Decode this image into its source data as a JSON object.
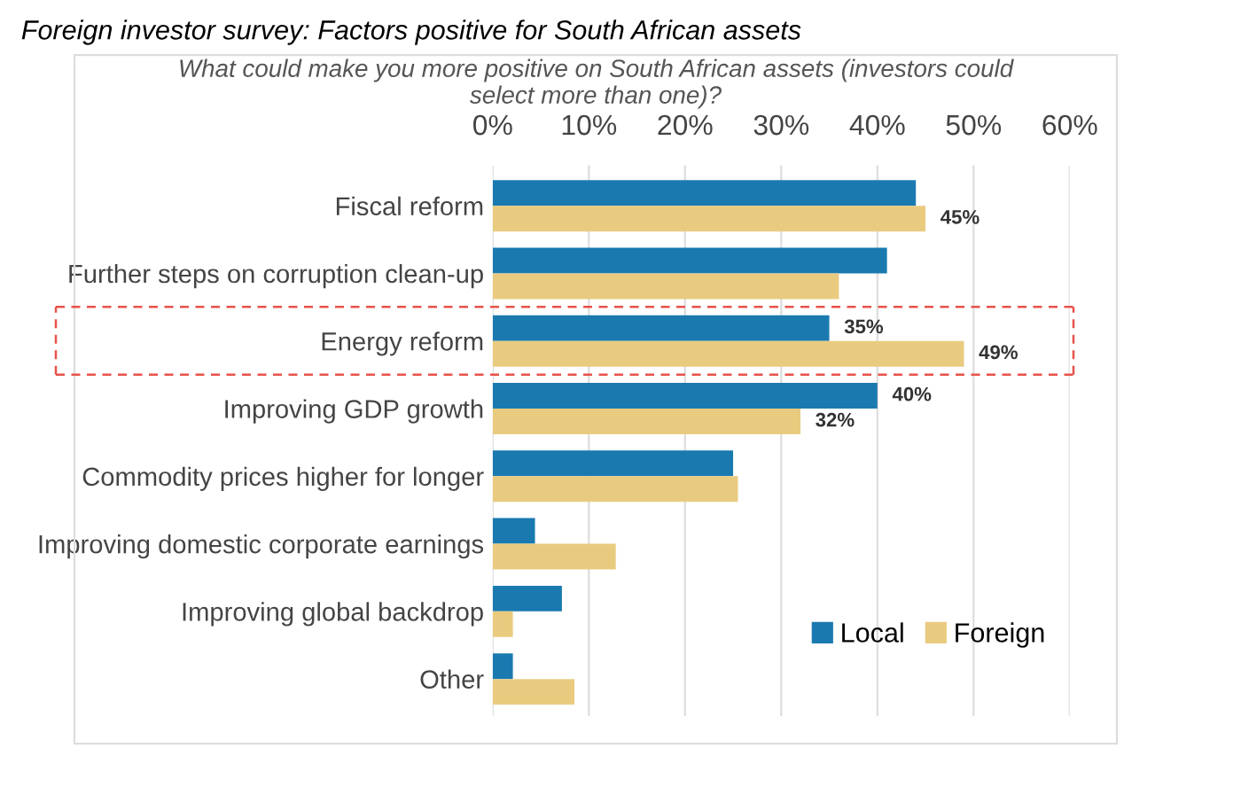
{
  "chart_data": {
    "type": "bar",
    "orientation": "horizontal",
    "title": "Foreign investor survey: Factors positive for South African assets",
    "subtitle": "What could make you more positive on South African assets (investors could\nselect more than one)?",
    "categories": [
      "Fiscal reform",
      "Further steps on corruption clean-up",
      "Energy reform",
      "Improving GDP growth",
      "Commodity prices higher for longer",
      "Improving domestic corporate earnings",
      "Improving global backdrop",
      "Other"
    ],
    "series": [
      {
        "name": "Local",
        "color": "#1a7ab0",
        "values": [
          44,
          41,
          35,
          40,
          25,
          4.4,
          7.2,
          2.1
        ],
        "value_labels": [
          null,
          null,
          "35%",
          "40%",
          null,
          null,
          null,
          null
        ]
      },
      {
        "name": "Foreign",
        "color": "#e9cb80",
        "values": [
          45,
          36,
          49,
          32,
          25.5,
          12.8,
          2.1,
          8.5
        ],
        "value_labels": [
          "45%",
          null,
          "49%",
          "32%",
          null,
          null,
          null,
          null
        ]
      }
    ],
    "xlim": [
      0,
      60
    ],
    "xticks": [
      {
        "value": 0,
        "label": "0%"
      },
      {
        "value": 10,
        "label": "10%"
      },
      {
        "value": 20,
        "label": "20%"
      },
      {
        "value": 30,
        "label": "30%"
      },
      {
        "value": 40,
        "label": "40%"
      },
      {
        "value": 50,
        "label": "50%"
      },
      {
        "value": 60,
        "label": "60%"
      }
    ],
    "grid": "x",
    "legend": "bottom right"
  }
}
